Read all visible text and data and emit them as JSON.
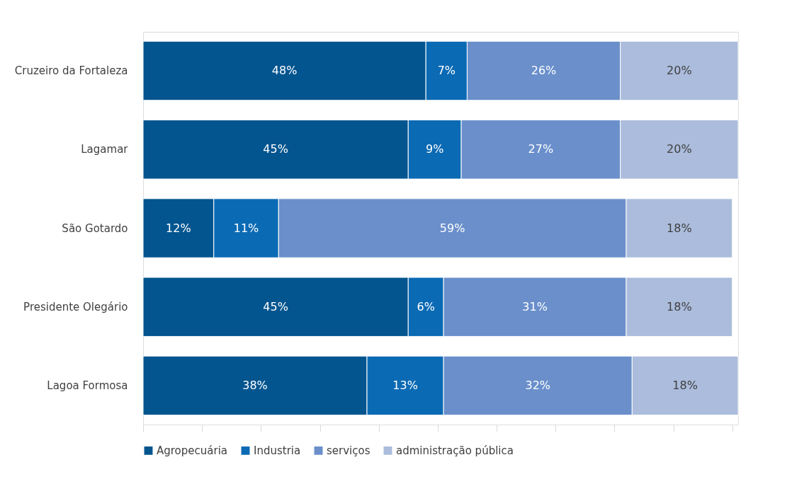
{
  "chart_data": {
    "type": "bar",
    "orientation": "horizontal",
    "stacked": true,
    "categories": [
      "Cruzeiro da Fortaleza",
      "Lagamar",
      "São Gotardo",
      "Presidente Olegário",
      "Lagoa Formosa"
    ],
    "series": [
      {
        "name": "Agropecuária",
        "color": "#03558f",
        "values": [
          48,
          45,
          12,
          45,
          38
        ],
        "value_labels": [
          "48%",
          "45%",
          "12%",
          "45%",
          "38%"
        ]
      },
      {
        "name": "Industria",
        "color": "#0b6ab4",
        "values": [
          7,
          9,
          11,
          6,
          13
        ],
        "value_labels": [
          "7%",
          "9%",
          "11%",
          "6%",
          "13%"
        ]
      },
      {
        "name": "serviços",
        "color": "#6a8fcb",
        "values": [
          26,
          27,
          59,
          31,
          32
        ],
        "value_labels": [
          "26%",
          "27%",
          "59%",
          "31%",
          "32%"
        ]
      },
      {
        "name": "administração pública",
        "color": "#abbcdc",
        "values": [
          20,
          20,
          18,
          18,
          18
        ],
        "value_labels": [
          "20%",
          "20%",
          "18%",
          "18%",
          "18%"
        ]
      }
    ],
    "grid": false,
    "legend": "bottom"
  }
}
